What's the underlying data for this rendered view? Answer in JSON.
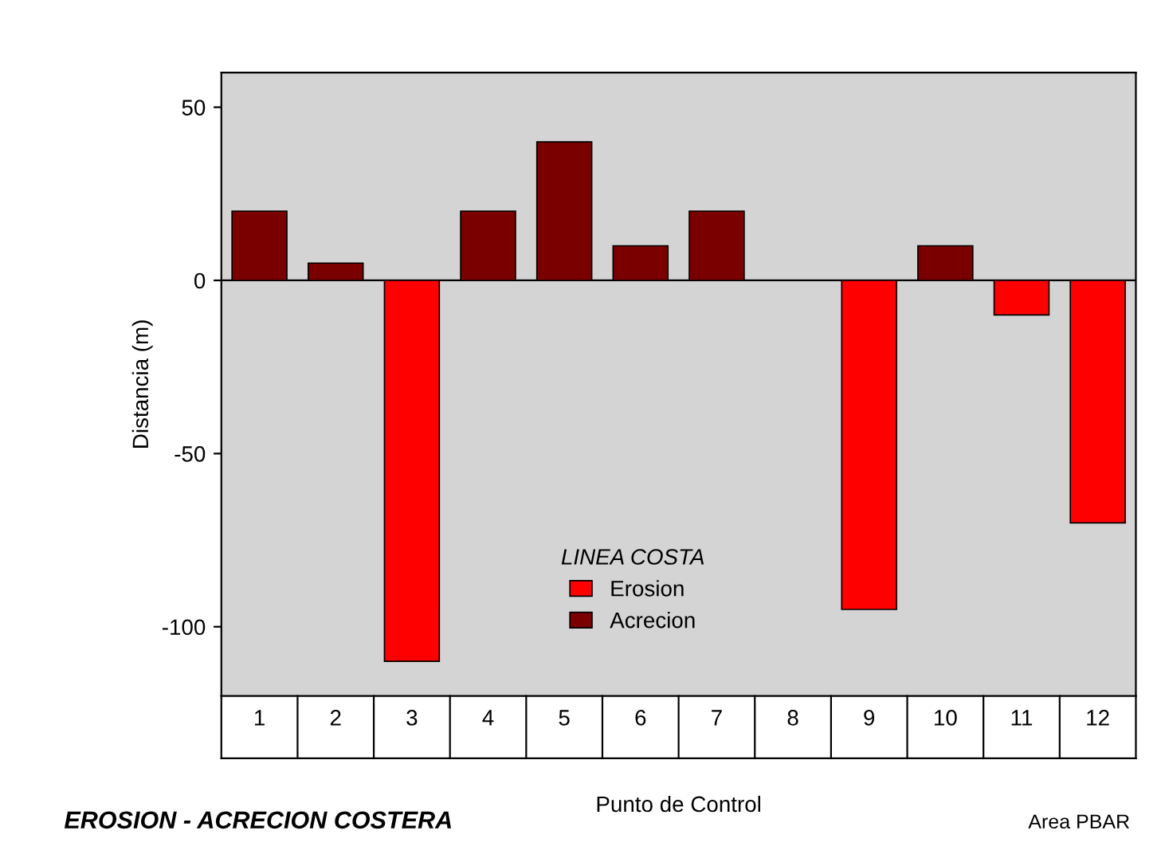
{
  "chart_data": {
    "type": "bar",
    "xlabel": "Punto de Control",
    "ylabel": "Distancia (m)",
    "legend_title": "LINEA COSTA",
    "legend": "bottom",
    "categories": [
      "1",
      "2",
      "3",
      "4",
      "5",
      "6",
      "7",
      "8",
      "9",
      "10",
      "11",
      "12"
    ],
    "series": [
      {
        "name": "Erosion",
        "color": "#ff0000",
        "values": [
          null,
          null,
          -110,
          null,
          null,
          null,
          null,
          null,
          -95,
          null,
          -10,
          -70
        ]
      },
      {
        "name": "Acrecion",
        "color": "#7a0000",
        "values": [
          20,
          5,
          null,
          20,
          40,
          10,
          20,
          null,
          null,
          10,
          null,
          null
        ]
      }
    ],
    "ylim": [
      -120,
      60
    ],
    "yticks": [
      50,
      0,
      -50,
      -100
    ],
    "grid": false,
    "ref_lines": [
      {
        "axis": "y",
        "value": 0,
        "color": "#000000"
      }
    ],
    "annotations": [
      "EROSION - ACRECION COSTERA",
      "Area PBAR"
    ]
  }
}
